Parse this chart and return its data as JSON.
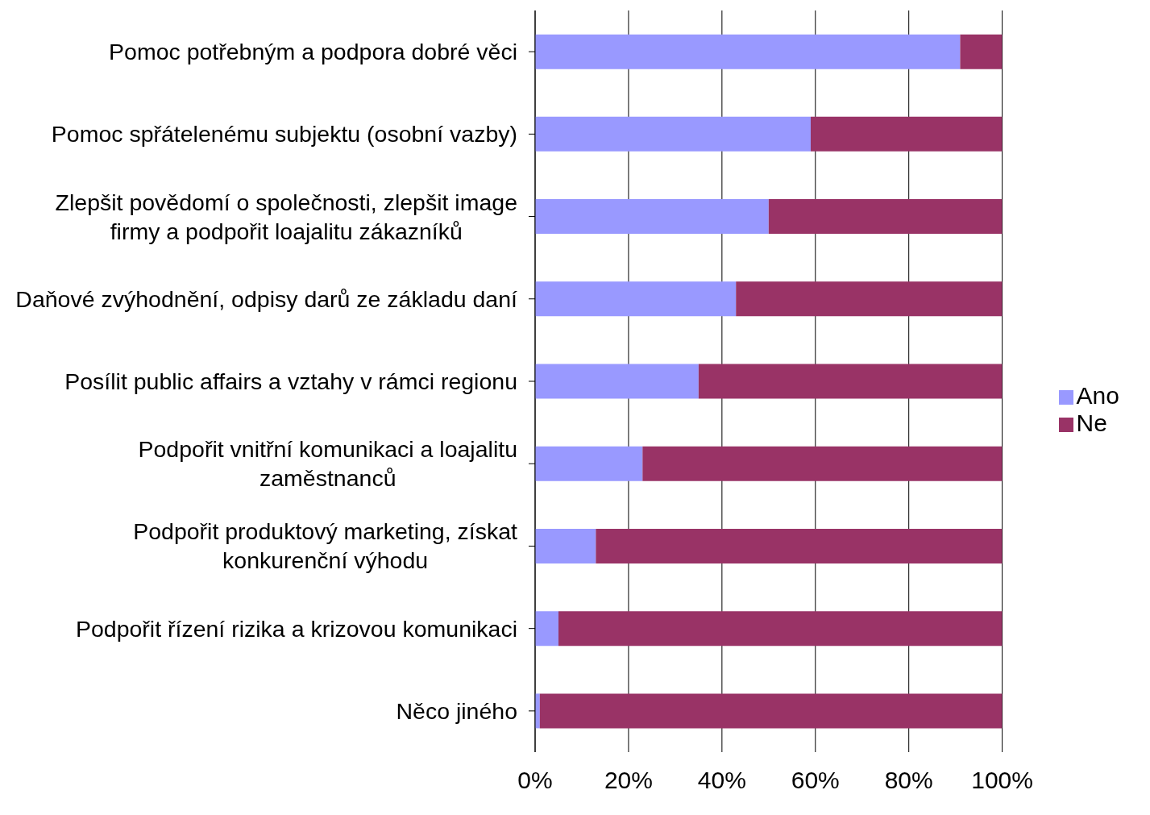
{
  "chart_data": {
    "type": "bar",
    "orientation": "horizontal",
    "stacked": true,
    "categories": [
      "Pomoc potřebným a podpora dobré věci",
      "Pomoc spřátelenému subjektu (osobní vazby)",
      "Zlepšit povědomí o společnosti, zlepšit image firmy a podpořit loajalitu zákazníků",
      "Daňové zvýhodnění, odpisy darů ze základu daní",
      "Posílit public affairs a vztahy v rámci regionu",
      "Podpořit vnitřní komunikaci a loajalitu zaměstnanců",
      "Podpořit produktový marketing, získat konkurenční výhodu",
      "Podpořit řízení rizika a krizovou komunikaci",
      "Něco jiného"
    ],
    "series": [
      {
        "name": "Ano",
        "color": "#9999ff",
        "values": [
          91,
          59,
          50,
          43,
          35,
          23,
          13,
          5,
          1
        ]
      },
      {
        "name": "Ne",
        "color": "#993366",
        "values": [
          9,
          41,
          50,
          57,
          65,
          77,
          87,
          95,
          99
        ]
      }
    ],
    "xlim": [
      0,
      100
    ],
    "xticks": [
      {
        "value": 0,
        "label": "0%"
      },
      {
        "value": 20,
        "label": "20%"
      },
      {
        "value": 40,
        "label": "40%"
      },
      {
        "value": 60,
        "label": "60%"
      },
      {
        "value": 80,
        "label": "80%"
      },
      {
        "value": 100,
        "label": "100%"
      }
    ],
    "grid": "x",
    "legend": "right"
  }
}
